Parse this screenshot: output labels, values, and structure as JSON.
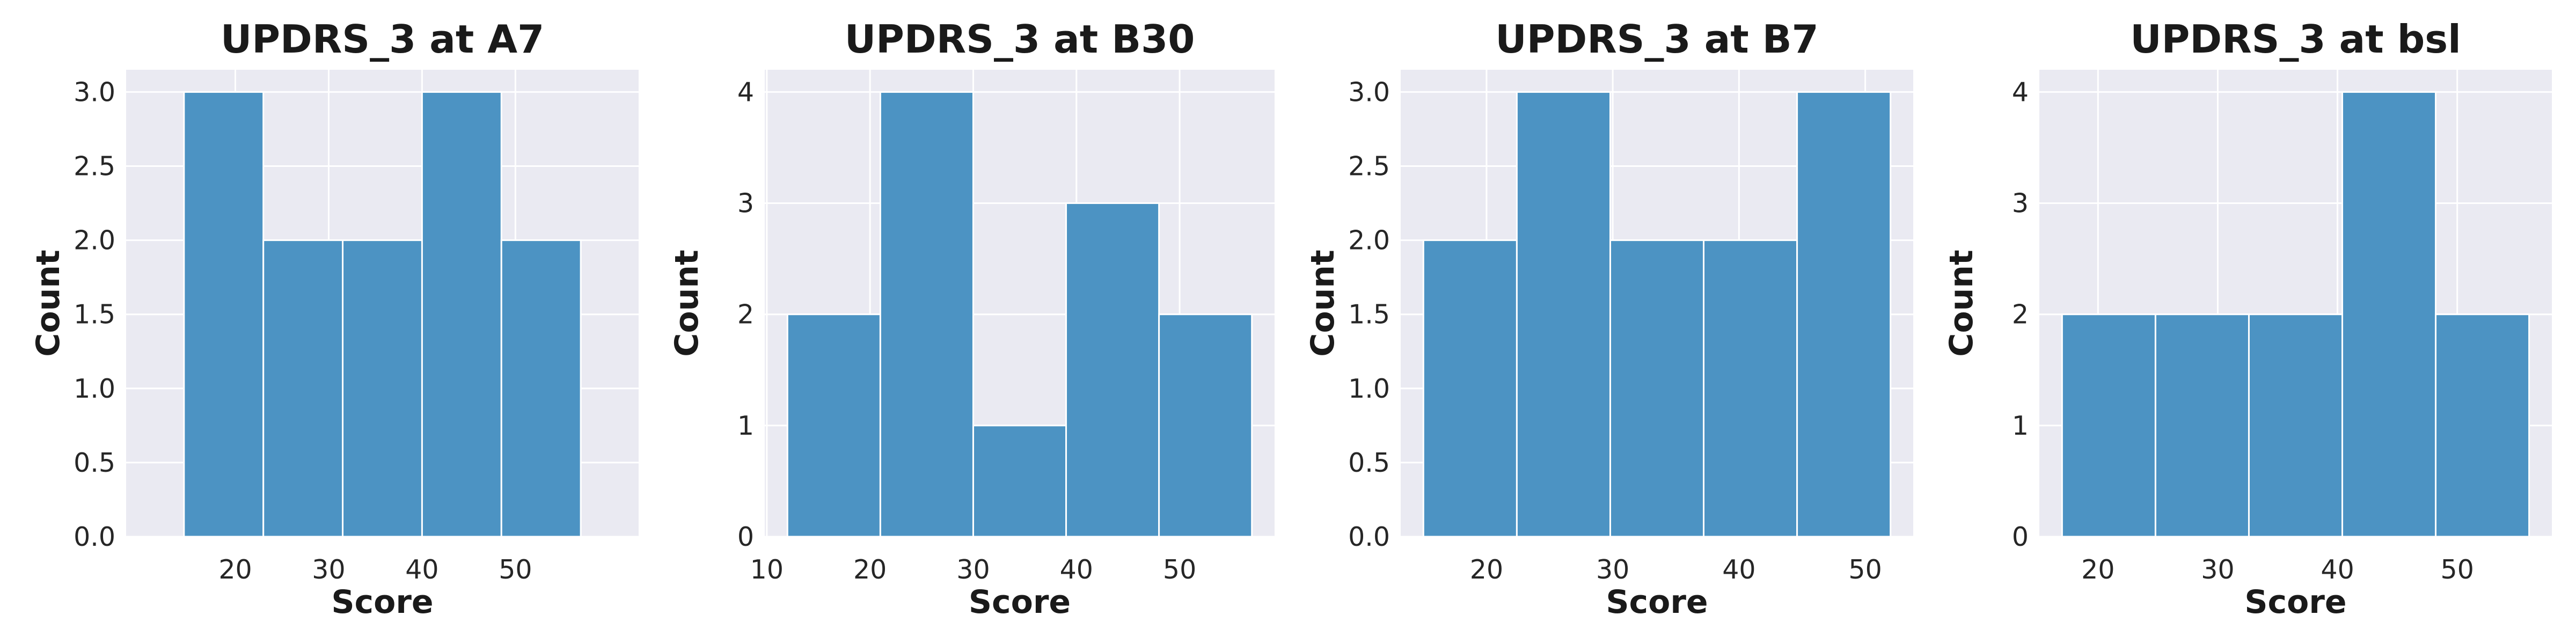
{
  "chart_data": [
    {
      "type": "bar",
      "title": "UPDRS_3 at A7",
      "xlabel": "Score",
      "ylabel": "Count",
      "bin_edges": [
        14.5,
        23.0,
        31.5,
        40.0,
        48.5,
        57.0
      ],
      "values": [
        3,
        2,
        2,
        3,
        2
      ],
      "xlim": [
        8.3,
        63.2
      ],
      "ylim": [
        0,
        3.15
      ],
      "xticks": [
        20,
        30,
        40,
        50
      ],
      "yticks": [
        0.0,
        0.5,
        1.0,
        1.5,
        2.0,
        2.5,
        3.0
      ],
      "ytick_labels": [
        "0.0",
        "0.5",
        "1.0",
        "1.5",
        "2.0",
        "2.5",
        "3.0"
      ],
      "grid": true
    },
    {
      "type": "bar",
      "title": "UPDRS_3 at B30",
      "xlabel": "Score",
      "ylabel": "Count",
      "bin_edges": [
        12.0,
        21.0,
        30.0,
        39.0,
        48.0,
        57.0
      ],
      "values": [
        2,
        4,
        1,
        3,
        2
      ],
      "xlim": [
        9.8,
        59.2
      ],
      "ylim": [
        0,
        4.2
      ],
      "xticks": [
        10,
        20,
        30,
        40,
        50
      ],
      "yticks": [
        0,
        1,
        2,
        3,
        4
      ],
      "ytick_labels": [
        "0",
        "1",
        "2",
        "3",
        "4"
      ],
      "grid": true
    },
    {
      "type": "bar",
      "title": "UPDRS_3 at B7",
      "xlabel": "Score",
      "ylabel": "Count",
      "bin_edges": [
        15.0,
        22.4,
        29.8,
        37.2,
        44.6,
        52.0
      ],
      "values": [
        2,
        3,
        2,
        2,
        3
      ],
      "xlim": [
        13.2,
        53.8
      ],
      "ylim": [
        0,
        3.15
      ],
      "xticks": [
        20,
        30,
        40,
        50
      ],
      "yticks": [
        0.0,
        0.5,
        1.0,
        1.5,
        2.0,
        2.5,
        3.0
      ],
      "ytick_labels": [
        "0.0",
        "0.5",
        "1.0",
        "1.5",
        "2.0",
        "2.5",
        "3.0"
      ],
      "grid": true
    },
    {
      "type": "bar",
      "title": "UPDRS_3 at bsl",
      "xlabel": "Score",
      "ylabel": "Count",
      "bin_edges": [
        17.0,
        24.8,
        32.6,
        40.4,
        48.2,
        56.0
      ],
      "values": [
        2,
        2,
        2,
        4,
        2
      ],
      "xlim": [
        15.1,
        57.9
      ],
      "ylim": [
        0,
        4.2
      ],
      "xticks": [
        20,
        30,
        40,
        50
      ],
      "yticks": [
        0,
        1,
        2,
        3,
        4
      ],
      "ytick_labels": [
        "0",
        "1",
        "2",
        "3",
        "4"
      ],
      "grid": true
    }
  ],
  "colors": {
    "bar": "#4C93C3",
    "bar_edge": "#ffffff",
    "plot_background": "#EAEAF2",
    "grid": "#ffffff",
    "text": "#1a1a1a"
  }
}
